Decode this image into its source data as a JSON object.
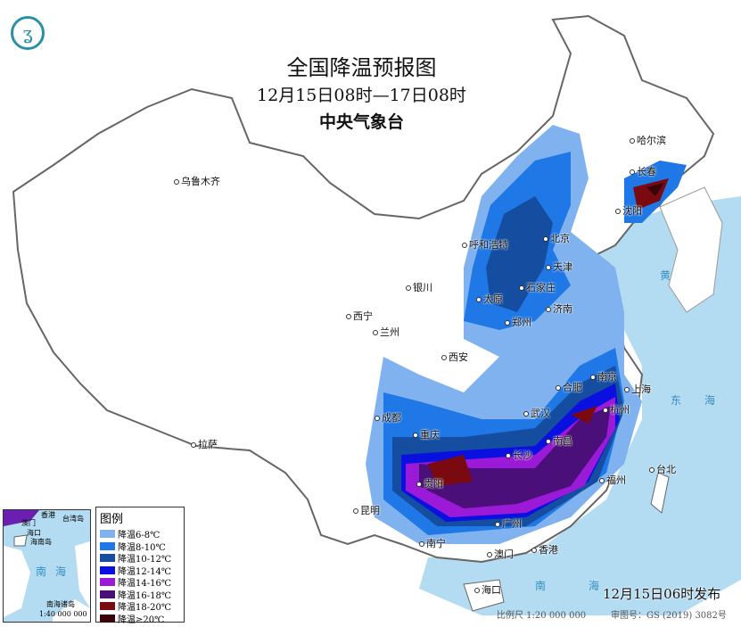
{
  "header": {
    "title": "全国降温预报图",
    "period": "12月15日08时—17日08时",
    "agency": "中央气象台",
    "logo_icon": "cma-logo-icon"
  },
  "cities": [
    {
      "name": "乌鲁木齐"
    },
    {
      "name": "哈尔滨"
    },
    {
      "name": "长春"
    },
    {
      "name": "沈阳"
    },
    {
      "name": "呼和浩特"
    },
    {
      "name": "北京"
    },
    {
      "name": "天津"
    },
    {
      "name": "银川"
    },
    {
      "name": "石家庄"
    },
    {
      "name": "太原"
    },
    {
      "name": "济南"
    },
    {
      "name": "西宁"
    },
    {
      "name": "兰州"
    },
    {
      "name": "郑州"
    },
    {
      "name": "西安"
    },
    {
      "name": "合肥"
    },
    {
      "name": "南京"
    },
    {
      "name": "上海"
    },
    {
      "name": "杭州"
    },
    {
      "name": "武汉"
    },
    {
      "name": "成都"
    },
    {
      "name": "重庆"
    },
    {
      "name": "拉萨"
    },
    {
      "name": "长沙"
    },
    {
      "name": "南昌"
    },
    {
      "name": "贵阳"
    },
    {
      "name": "福州"
    },
    {
      "name": "台北"
    },
    {
      "name": "昆明"
    },
    {
      "name": "南宁"
    },
    {
      "name": "广州"
    },
    {
      "name": "香港"
    },
    {
      "name": "澳门"
    },
    {
      "name": "海口"
    }
  ],
  "seas": {
    "donghai_1": "东",
    "donghai_2": "海",
    "nanhai_1": "南",
    "nanhai_2": "海",
    "huanghai": "黄"
  },
  "legend": {
    "title": "图例",
    "items": [
      {
        "label": "降温6-8℃",
        "color": "#7fb2ee"
      },
      {
        "label": "降温8-10℃",
        "color": "#1f78e6"
      },
      {
        "label": "降温10-12℃",
        "color": "#154ea0"
      },
      {
        "label": "降温12-14℃",
        "color": "#0a10e0"
      },
      {
        "label": "降温14-16℃",
        "color": "#9a1ad8"
      },
      {
        "label": "降温16-18℃",
        "color": "#4a0f78"
      },
      {
        "label": "降温18-20℃",
        "color": "#7a0a10"
      },
      {
        "label": "降温≥20℃",
        "color": "#3a0508"
      }
    ]
  },
  "inset": {
    "labels": [
      "澳门",
      "香港",
      "台湾岛",
      "海口",
      "海南岛",
      "南",
      "海",
      "南海诸岛"
    ],
    "scale": "1:40 000 000"
  },
  "footer": {
    "issued": "12月15日06时发布",
    "scale": "比例尺 1:20 000 000",
    "approval": "审图号：GS (2019) 3082号"
  },
  "colors": {
    "sea": "#b3dcf2",
    "land": "#ffffff",
    "border": "#777777"
  }
}
